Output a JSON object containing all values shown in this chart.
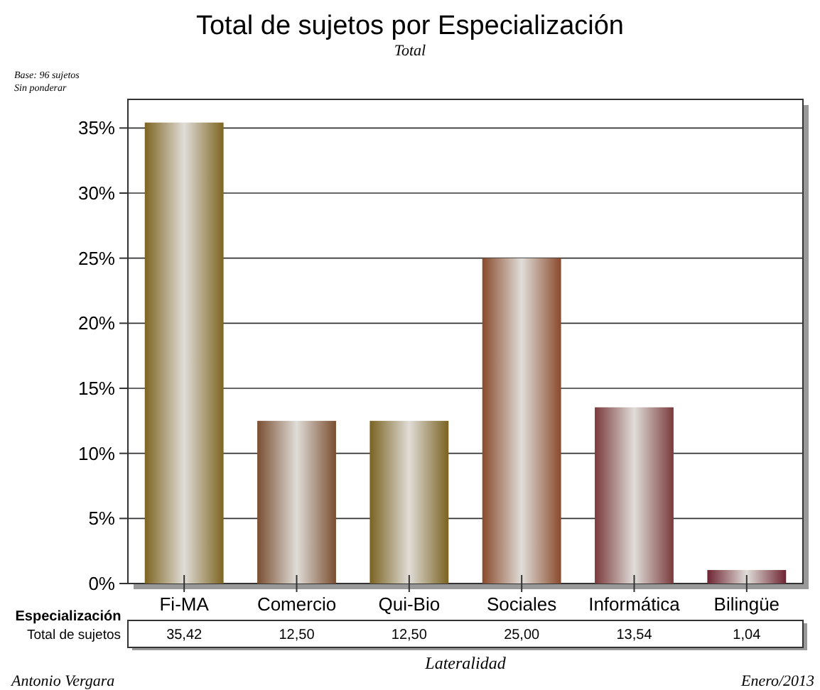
{
  "chart_data": {
    "type": "bar",
    "title": "Total de sujetos por Especialización",
    "subtitle": "Total",
    "xlabel": "Lateralidad",
    "categories": [
      "Fi-MA",
      "Comercio",
      "Qui-Bio",
      "Sociales",
      "Informática",
      "Bilingüe"
    ],
    "series": [
      {
        "name": "Total de sujetos",
        "values": [
          35.42,
          12.5,
          12.5,
          25,
          13.54,
          1.04
        ],
        "value_labels": [
          "35,42",
          "12,50",
          "12,50",
          "25,00",
          "13,54",
          "1,04"
        ],
        "colors": [
          "#7d6420",
          "#7a4e30",
          "#7a6220",
          "#8a4a2c",
          "#7a3a3c",
          "#6e2432"
        ]
      }
    ],
    "ylim": [
      0,
      37.2
    ],
    "yticks": [
      {
        "value": 0,
        "label": "0%"
      },
      {
        "value": 5,
        "label": "5%"
      },
      {
        "value": 10,
        "label": "10%"
      },
      {
        "value": 15,
        "label": "15%"
      },
      {
        "value": 20,
        "label": "20%"
      },
      {
        "value": 25,
        "label": "25%"
      },
      {
        "value": 30,
        "label": "30%"
      },
      {
        "value": 35,
        "label": "35%"
      }
    ],
    "grid": "y",
    "annotations": [
      "Base: 96 sujetos",
      "Sin ponderar",
      "Especialización",
      "Antonio Vergara",
      "Enero/2013"
    ]
  }
}
